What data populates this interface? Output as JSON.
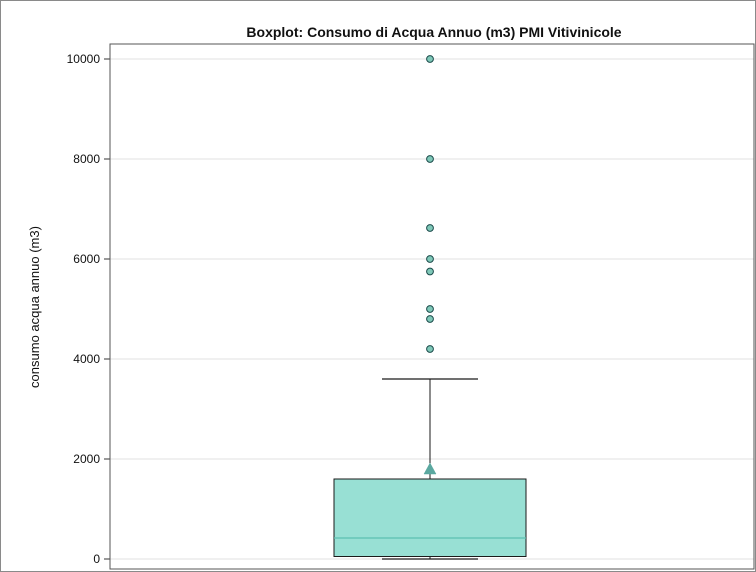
{
  "chart_data": {
    "type": "boxplot",
    "title": "Boxplot: Consumo di Acqua Annuo (m3) PMI Vitivinicole",
    "xlabel": "",
    "ylabel": "consumo acqua annuo (m3)",
    "ylim": [
      -200,
      10300
    ],
    "yticks": [
      0,
      2000,
      4000,
      6000,
      8000,
      10000
    ],
    "grid": true,
    "box": {
      "whisker_low": 0,
      "q1": 50,
      "median": 420,
      "q3": 1600,
      "whisker_high": 3600,
      "mean": 1800
    },
    "outliers": [
      4200,
      4800,
      5000,
      5750,
      6000,
      6620,
      8000,
      10000
    ],
    "colors": {
      "box_fill": "#98e0d4",
      "box_stroke": "#1a1a1a",
      "median_line": "#5bbfb0",
      "mean_marker": "#5ba8a0",
      "outlier_fill": "#7fc8b8",
      "outlier_stroke": "#1a4a4a",
      "gridline": "#e2e2e2"
    }
  }
}
